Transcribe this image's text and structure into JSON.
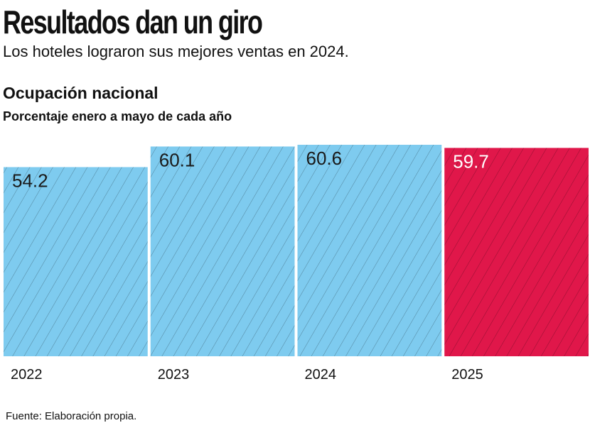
{
  "chart_data": {
    "type": "bar",
    "title": "Resultados dan un giro",
    "subtitle": "Los hoteles lograron sus mejores ventas en 2024.",
    "chart_title": "Ocupación nacional",
    "chart_subtitle": "Porcentaje  enero a mayo de cada año",
    "categories": [
      "2022",
      "2023",
      "2024",
      "2025"
    ],
    "values": [
      54.2,
      60.1,
      60.6,
      59.7
    ],
    "colors": [
      "#7ecbef",
      "#7ecbef",
      "#7ecbef",
      "#e0174a"
    ],
    "label_colors": [
      "#1a1a1a",
      "#1a1a1a",
      "#1a1a1a",
      "#ffffff"
    ],
    "source": "Fuente: Elaboración propia."
  }
}
